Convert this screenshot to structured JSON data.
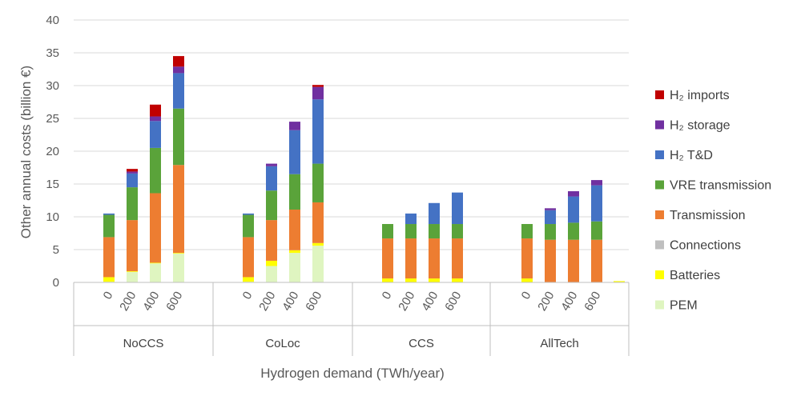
{
  "chart_data": {
    "type": "bar",
    "stacked": true,
    "xlabel": "Hydrogen demand (TWh/year)",
    "ylabel": "Other annual costs (billion €)",
    "ylim": [
      0,
      40
    ],
    "yticks": [
      0,
      5,
      10,
      15,
      20,
      25,
      30,
      35,
      40
    ],
    "grid": true,
    "legend_position": "right",
    "groups": [
      {
        "name": "NoCCS",
        "categories": [
          "0",
          "200",
          "400",
          "600"
        ]
      },
      {
        "name": "CoLoc",
        "categories": [
          "0",
          "200",
          "400",
          "600"
        ]
      },
      {
        "name": "CCS",
        "categories": [
          "0",
          "200",
          "400",
          "600"
        ]
      },
      {
        "name": "AllTech",
        "categories": [
          "0",
          "200",
          "400",
          "600"
        ]
      }
    ],
    "series": [
      {
        "name": "PEM",
        "color": "#dff5c0",
        "values": [
          0.1,
          1.6,
          2.9,
          4.4,
          0.1,
          2.5,
          4.5,
          5.6,
          0,
          0,
          0,
          0,
          0,
          0,
          0,
          0
        ]
      },
      {
        "name": "Batteries",
        "color": "#ffff00",
        "values": [
          0.7,
          0.1,
          0.1,
          0.1,
          0.7,
          0.8,
          0.4,
          0.4,
          0.6,
          0.6,
          0.6,
          0.6,
          0.6,
          0,
          0,
          0
        ]
      },
      {
        "name": "Connections",
        "color": "#bfbfbf",
        "values": [
          0,
          0,
          0,
          0,
          0,
          0,
          0,
          0,
          0,
          0,
          0,
          0,
          0,
          0,
          0,
          0
        ]
      },
      {
        "name": "Transmission",
        "color": "#ed7d31",
        "values": [
          6.1,
          7.8,
          10.6,
          13.4,
          6.1,
          6.2,
          6.2,
          6.2,
          6.1,
          6.1,
          6.1,
          6.1,
          6.1,
          6.5,
          6.5,
          6.5
        ]
      },
      {
        "name": "VRE transmission",
        "color": "#5aa33a",
        "values": [
          3.4,
          5.0,
          6.9,
          8.6,
          3.4,
          4.5,
          5.4,
          5.9,
          2.2,
          2.2,
          2.2,
          2.2,
          2.2,
          2.4,
          2.6,
          2.8
        ]
      },
      {
        "name": "H₂ T&D",
        "color": "#4472c4",
        "values": [
          0.2,
          2.1,
          4.1,
          5.4,
          0.2,
          3.7,
          6.7,
          9.8,
          0,
          1.6,
          3.2,
          4.8,
          0,
          2.1,
          4.0,
          5.5
        ]
      },
      {
        "name": "H₂ storage",
        "color": "#7030a0",
        "values": [
          0,
          0.3,
          0.7,
          1.0,
          0,
          0.4,
          1.3,
          1.9,
          0,
          0,
          0,
          0,
          0,
          0.3,
          0.8,
          0.8
        ]
      },
      {
        "name": "H₂ imports",
        "color": "#c00000",
        "values": [
          0,
          0.4,
          1.8,
          1.6,
          0,
          0,
          0,
          0.3,
          0,
          0,
          0,
          0,
          0,
          0,
          0,
          0
        ]
      }
    ],
    "extra_mark": {
      "series": "Batteries",
      "value": 0.2
    }
  }
}
